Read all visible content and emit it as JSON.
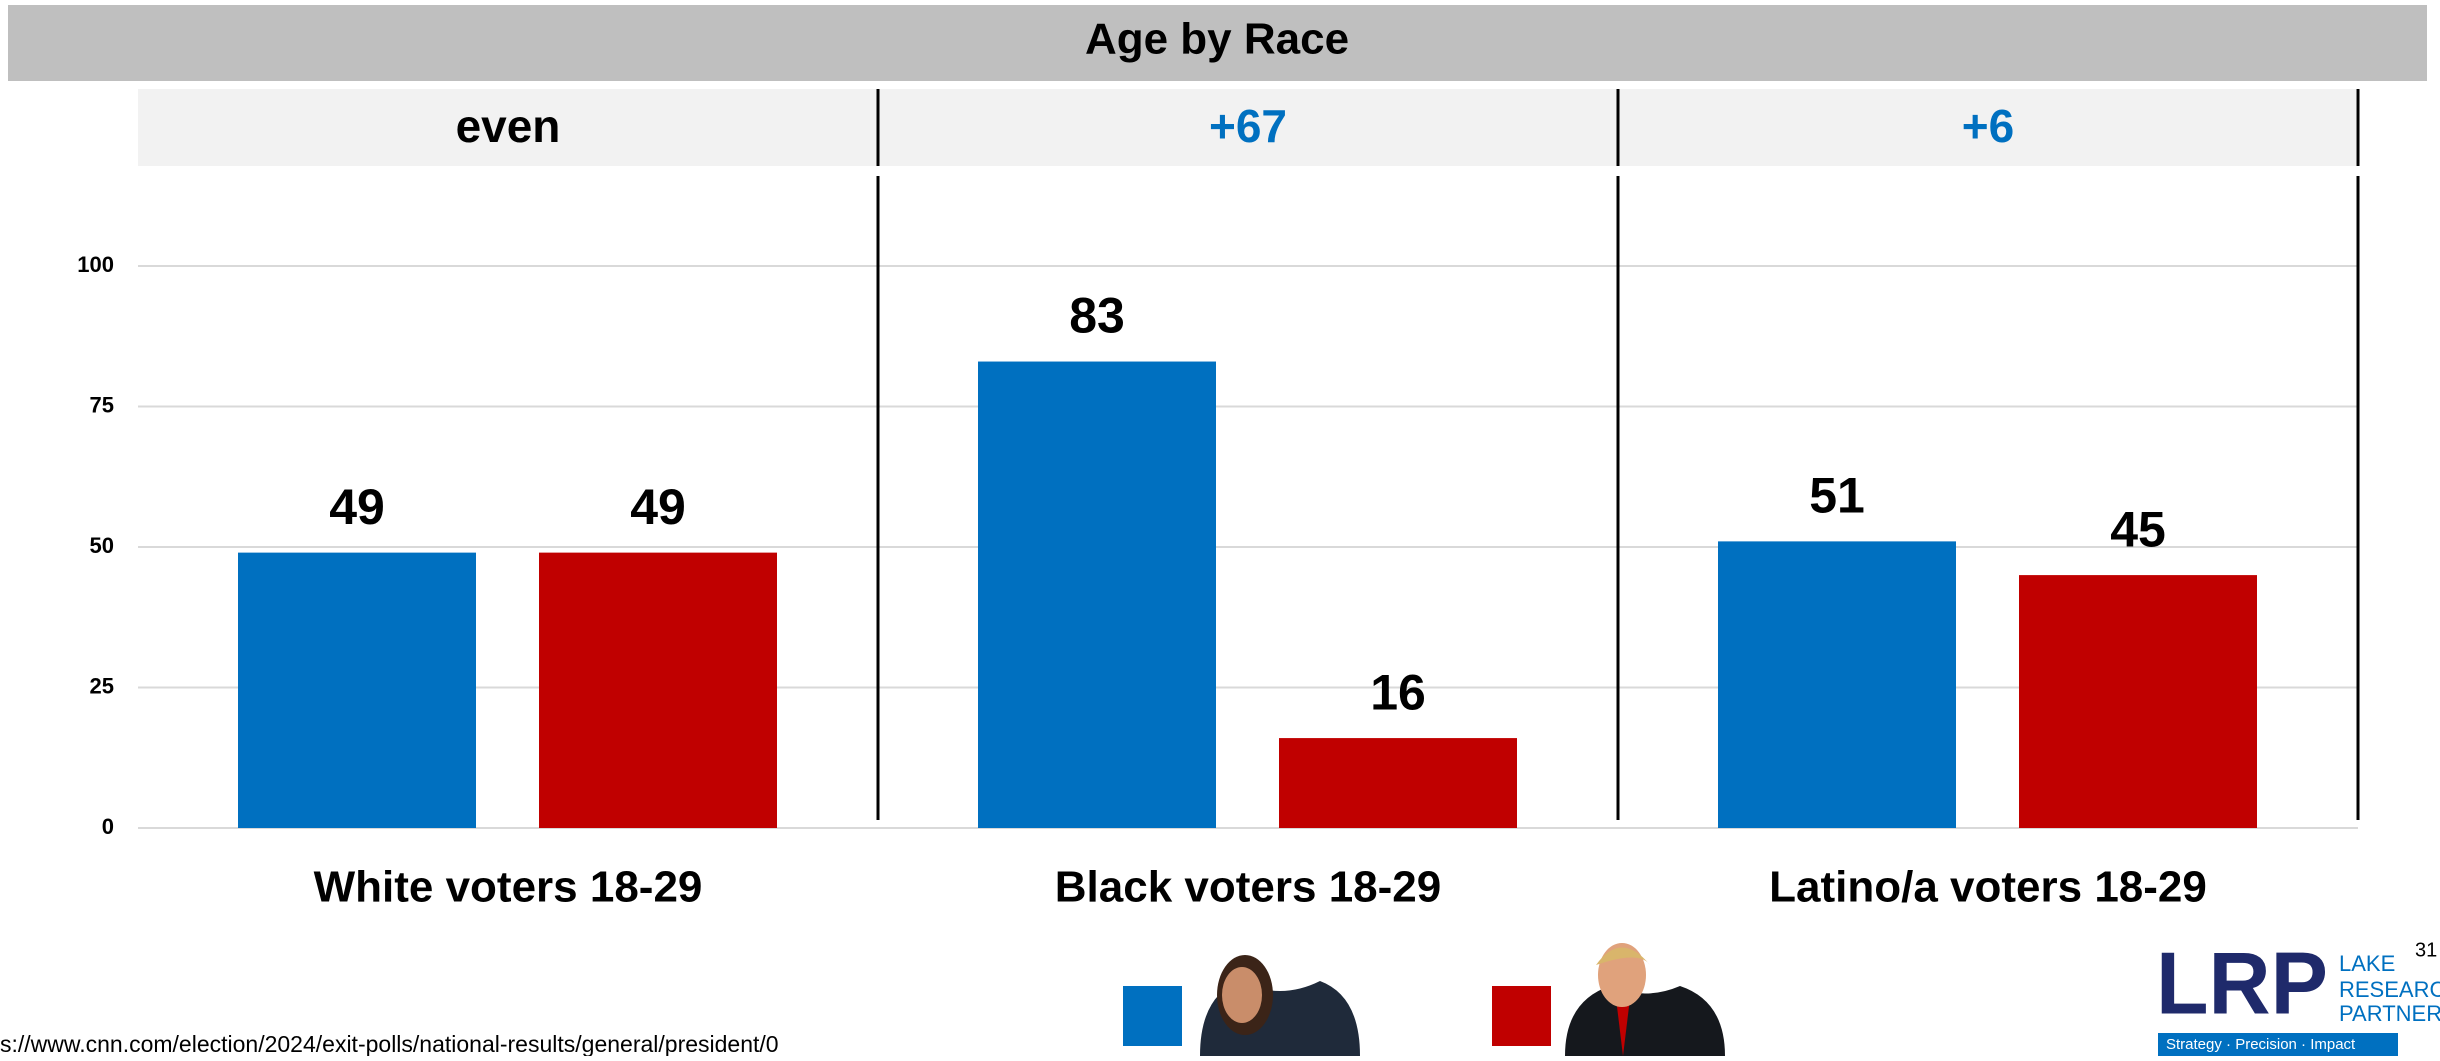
{
  "chart_data": {
    "type": "bar",
    "title": "Age by Race",
    "annotations": [
      "even",
      "+67",
      "+6"
    ],
    "annotation_colors": [
      "#000000",
      "#0070c0",
      "#0070c0"
    ],
    "categories": [
      "White voters 18-29",
      "Black voters 18-29",
      "Latino/a voters 18-29"
    ],
    "series": [
      {
        "color": "#0070c0",
        "values": [
          49,
          83,
          51
        ]
      },
      {
        "color": "#c00000",
        "values": [
          49,
          16,
          45
        ]
      }
    ],
    "ylim": [
      0,
      100
    ],
    "yticks": [
      0,
      25,
      50,
      75,
      100
    ],
    "grid": true,
    "value_labels_shown": true
  },
  "footer": {
    "source": "s://www.cnn.com/election/2024/exit-polls/national-results/general/president/0",
    "page_number": "31"
  },
  "logo": {
    "mark": "LRP",
    "lines": [
      "LAKE",
      "RESEARCH",
      "PARTNERS"
    ],
    "tagline": "Strategy · Precision · Impact"
  }
}
